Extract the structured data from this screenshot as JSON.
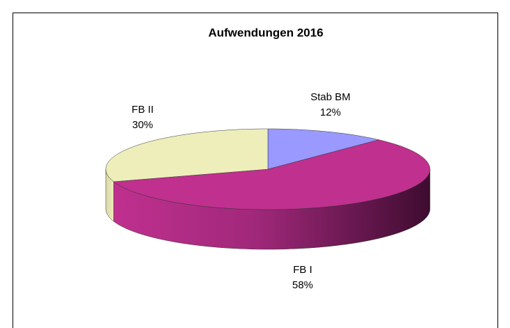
{
  "chart_data": {
    "type": "pie3d",
    "title": "Aufwendungen 2016",
    "categories": [
      "Stab BM",
      "FB I",
      "FB II"
    ],
    "values": [
      12,
      58,
      30
    ],
    "value_labels": [
      "12%",
      "58%",
      "30%"
    ],
    "colors": [
      "#9999ff",
      "#c0308f",
      "#eeeebb"
    ]
  }
}
